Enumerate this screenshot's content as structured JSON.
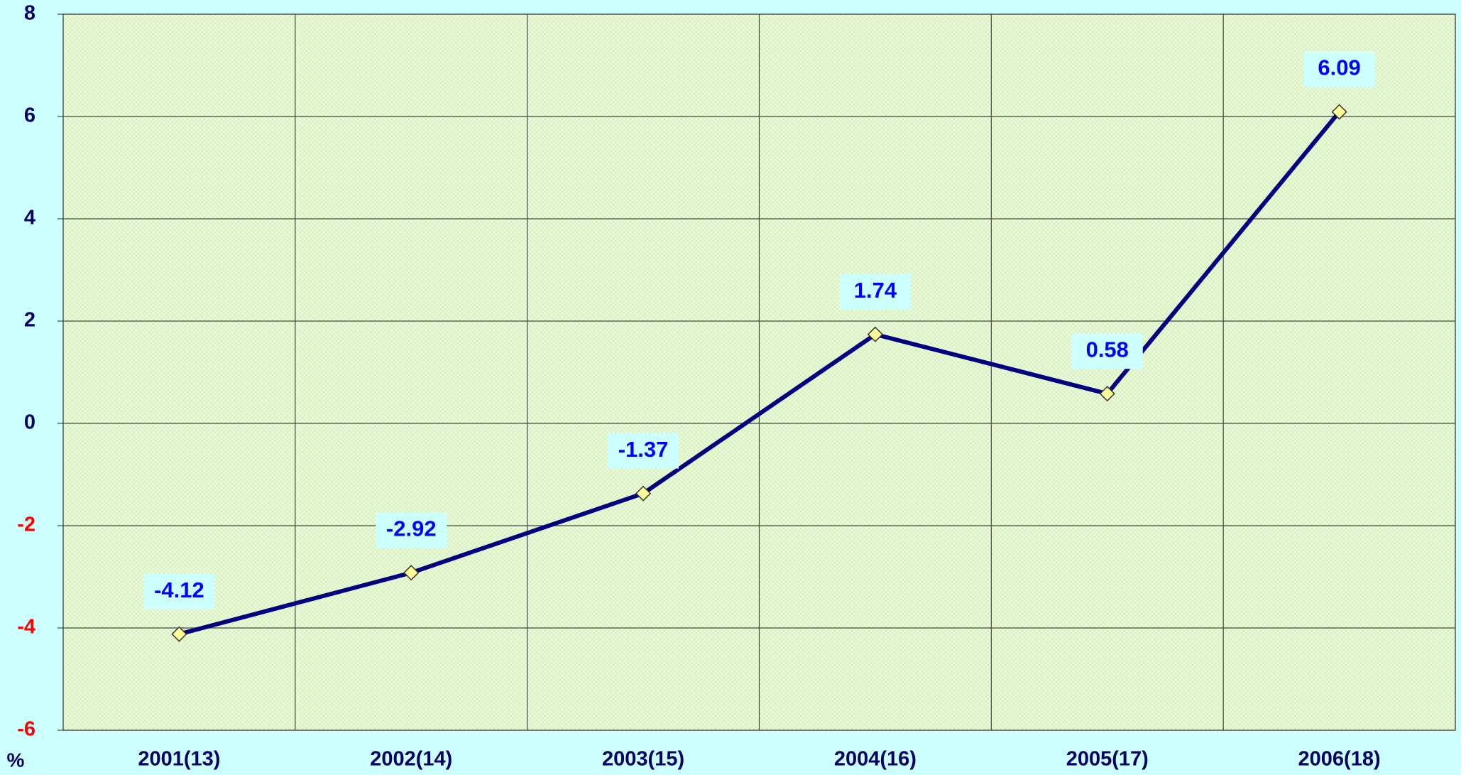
{
  "chart_data": {
    "type": "line",
    "ylabel": "%",
    "categories": [
      "2001(13)",
      "2002(14)",
      "2003(15)",
      "2004(16)",
      "2005(17)",
      "2006(18)"
    ],
    "series": [
      {
        "name": null,
        "color": "#000080",
        "marker_color": "#ffff99",
        "values": [
          -4.12,
          -2.92,
          -1.37,
          1.74,
          0.58,
          6.09
        ]
      }
    ],
    "ylim": [
      -6,
      8
    ],
    "yticks": [
      -6,
      -4,
      -2,
      0,
      2,
      4,
      6,
      8
    ],
    "grid": true,
    "tick_color": "#000066",
    "negative_tick_color": "#ff0000",
    "label_color": "#0000ff"
  }
}
